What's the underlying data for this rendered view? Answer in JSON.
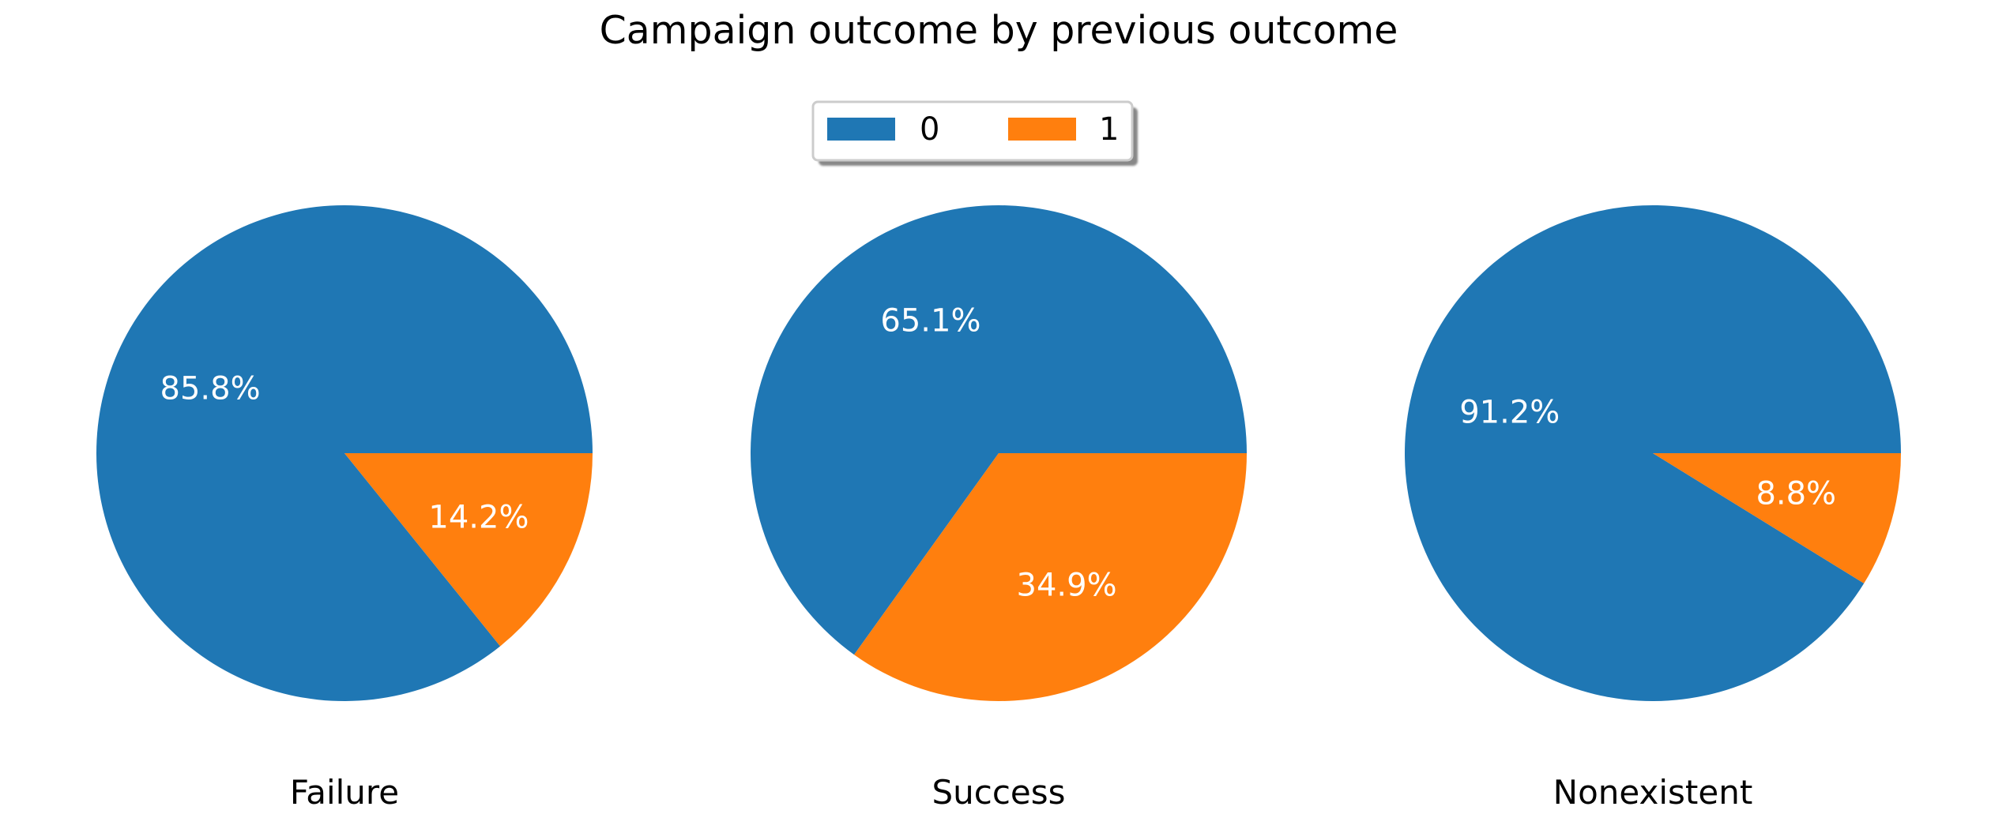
{
  "chart_data": {
    "type": "pie",
    "title": "Campaign outcome by previous outcome",
    "legend": {
      "placement": "top-center",
      "entries": [
        "0",
        "1"
      ]
    },
    "colors": {
      "0": "#1f77b4",
      "1": "#ff7f0e"
    },
    "pies": [
      {
        "label": "Failure",
        "slices": [
          {
            "category": "0",
            "value": 85.8,
            "label": "85.8%"
          },
          {
            "category": "1",
            "value": 14.2,
            "label": "14.2%"
          }
        ]
      },
      {
        "label": "Success",
        "slices": [
          {
            "category": "0",
            "value": 65.1,
            "label": "65.1%"
          },
          {
            "category": "1",
            "value": 34.9,
            "label": "34.9%"
          }
        ]
      },
      {
        "label": "Nonexistent",
        "slices": [
          {
            "category": "0",
            "value": 91.2,
            "label": "91.2%"
          },
          {
            "category": "1",
            "value": 8.8,
            "label": "8.8%"
          }
        ]
      }
    ]
  }
}
